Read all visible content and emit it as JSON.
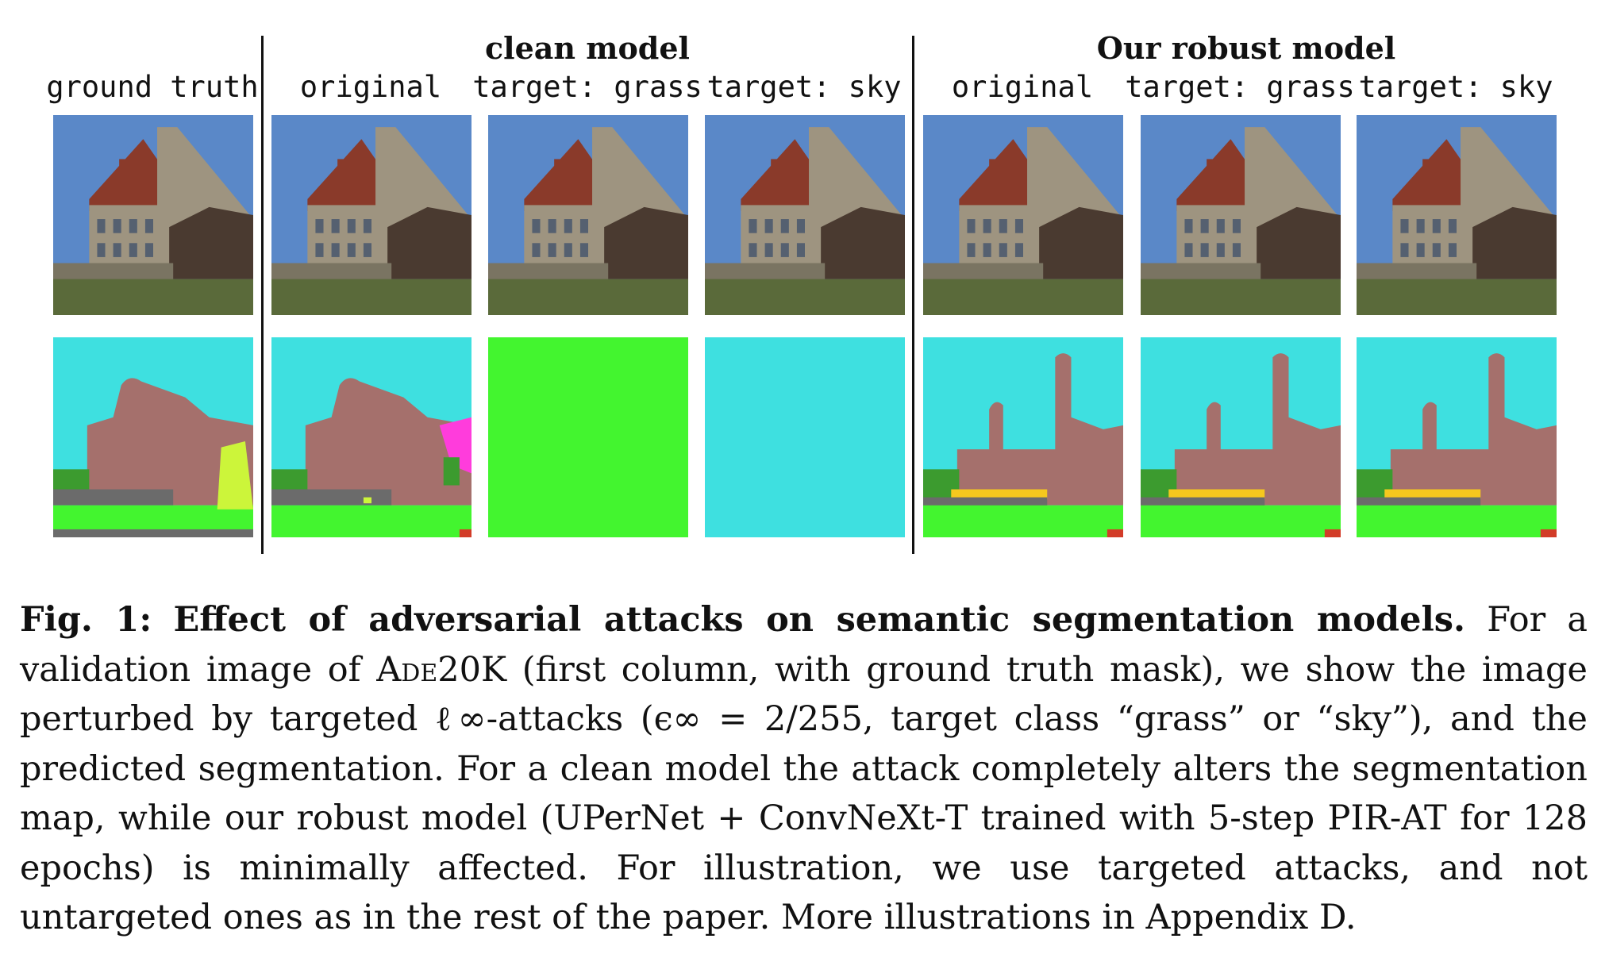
{
  "figure": {
    "headers": {
      "clean": "clean model",
      "robust": "Our robust model"
    },
    "columns": [
      {
        "label": "ground truth"
      },
      {
        "label": "original"
      },
      {
        "label": "target: grass"
      },
      {
        "label": "target: sky"
      },
      {
        "label": "original"
      },
      {
        "label": "target: grass"
      },
      {
        "label": "target: sky"
      }
    ],
    "mask_colors": {
      "sky": "#3ee0e0",
      "building": "#a5706c",
      "grass": "#43f52f",
      "road": "#6b6b6b",
      "tree": "#3c9b2f",
      "yellow_green": "#ccf53a",
      "magenta": "#ff3cdc",
      "gold": "#f5c81e",
      "red": "#d23c28"
    },
    "photo_colors": {
      "sky": "#5a88c8",
      "wall": "#9e9480",
      "roof": "#8a3a2a",
      "lawn": "#5a6a3a",
      "shadow": "#4a3a30"
    }
  },
  "caption": {
    "label": "Fig. 1:",
    "title": "Effect of adversarial attacks on semantic segmentation models.",
    "text_1": "For a validation image of",
    "dataset": "Ade20K",
    "text_2": "(first column, with ground truth mask), we show the image perturbed by targeted ℓ∞-attacks (ϵ∞ = 2/255, target class “grass” or “sky”), and the predicted segmentation. For a clean model the attack completely alters the segmentation map, while our robust model (UPerNet + ConvNeXt-T trained with 5-step PIR-AT for 128 epochs) is minimally affected. For illustration, we use targeted attacks, and not untargeted ones as in the rest of the paper. More illustrations in Appendix D."
  }
}
